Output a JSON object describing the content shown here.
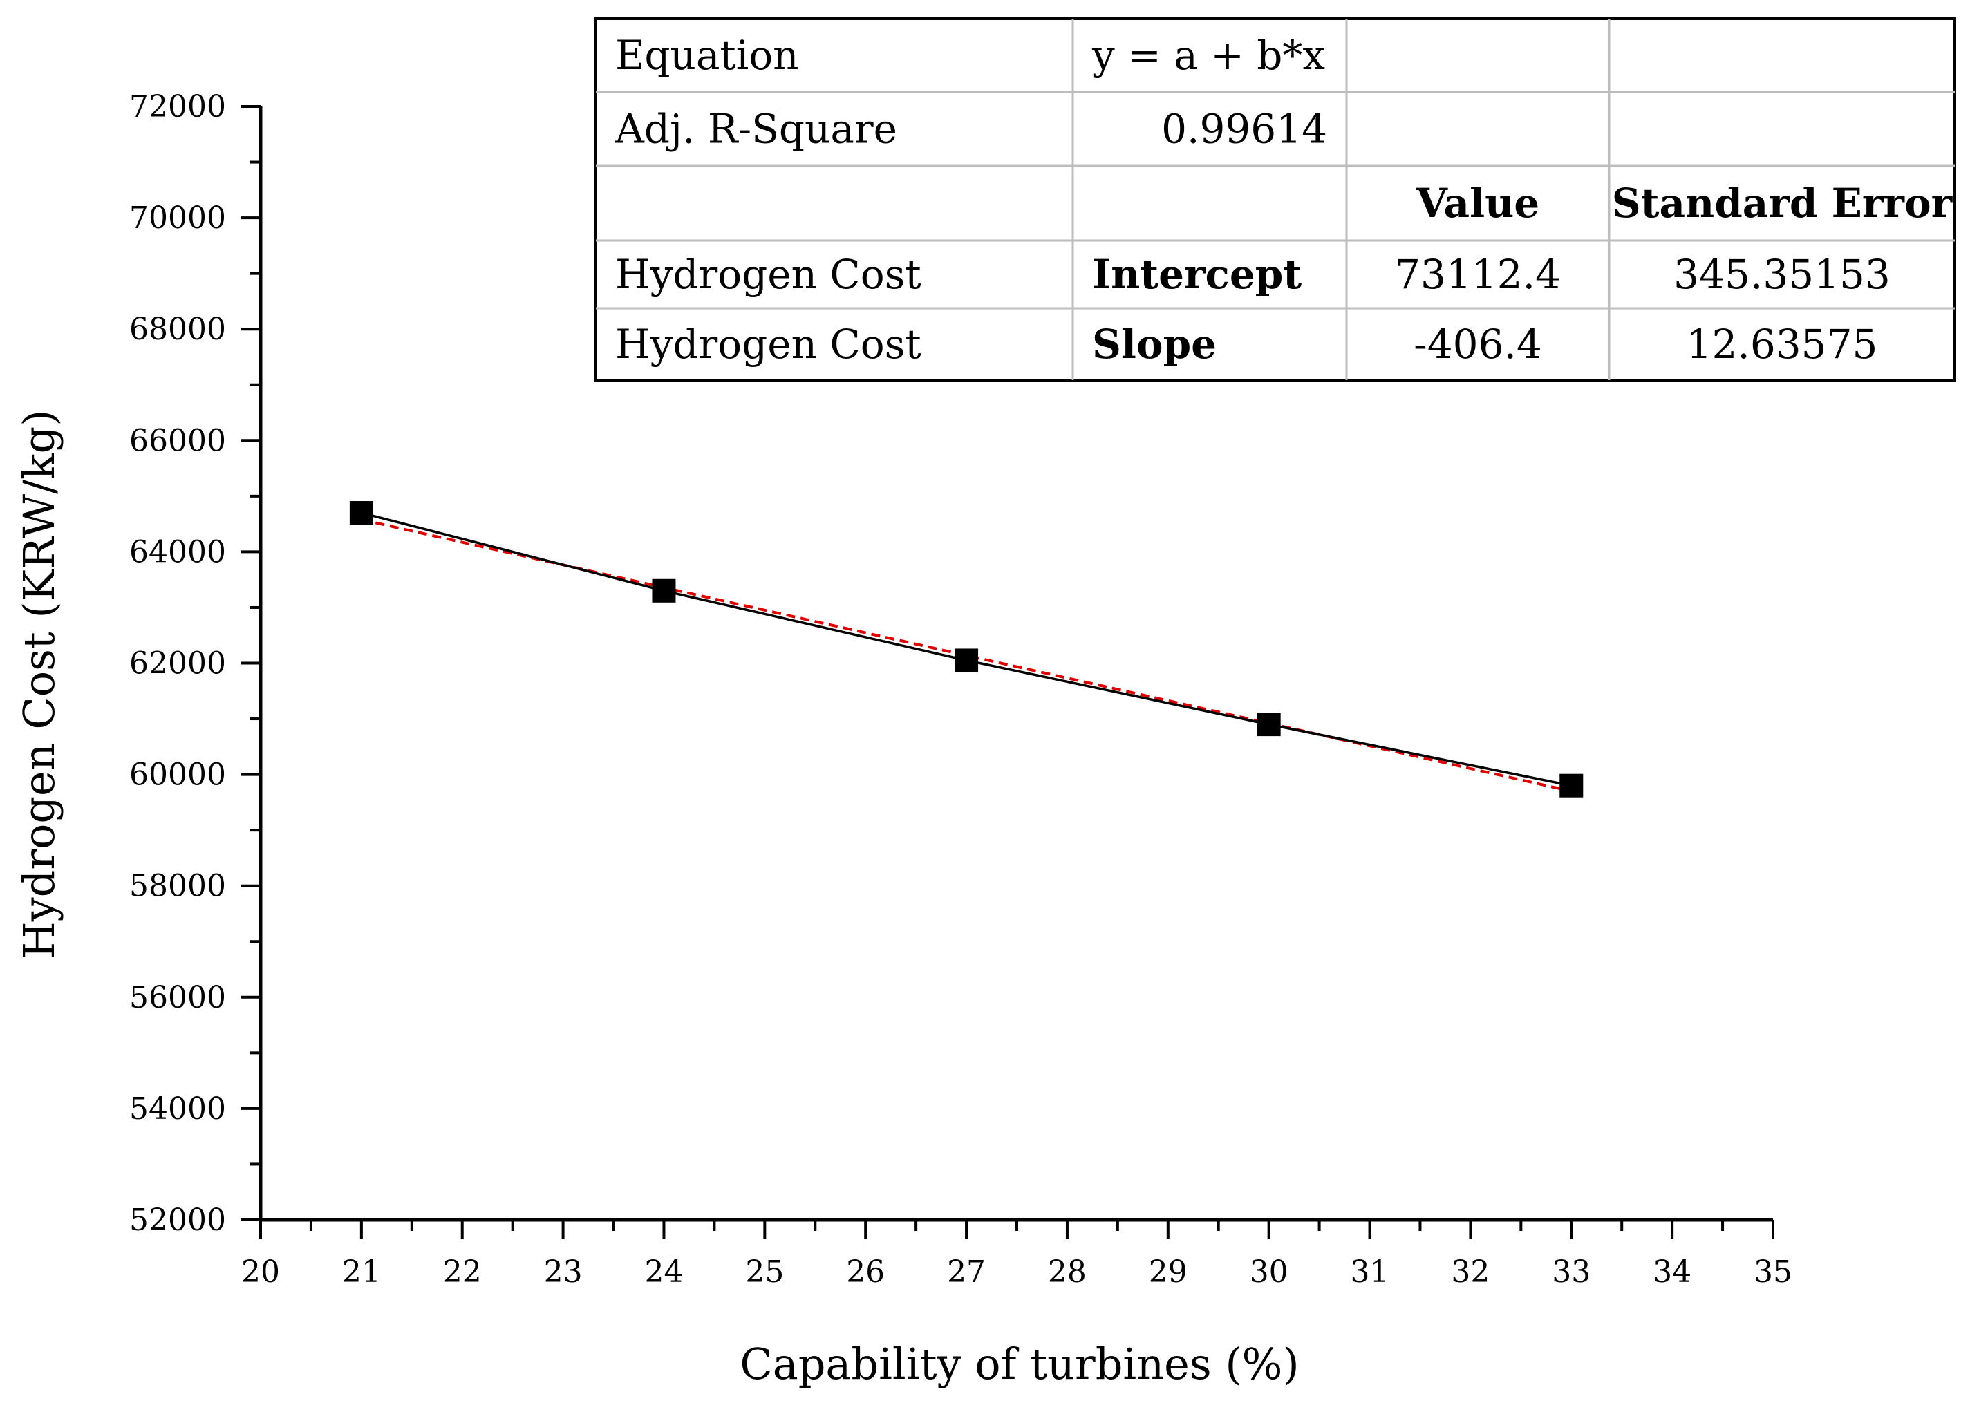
{
  "chart_data": {
    "type": "scatter",
    "xlabel": "Capability of turbines (%)",
    "ylabel": "Hydrogen Cost (KRW/kg)",
    "xlim": [
      20,
      35
    ],
    "ylim": [
      52000,
      72000
    ],
    "x_ticks": [
      20,
      21,
      22,
      23,
      24,
      25,
      26,
      27,
      28,
      29,
      30,
      31,
      32,
      33,
      34,
      35
    ],
    "y_ticks": [
      52000,
      54000,
      56000,
      58000,
      60000,
      62000,
      64000,
      66000,
      68000,
      70000,
      72000
    ],
    "grid": false,
    "series": [
      {
        "style": "square markers, black solid line",
        "color": "#000000",
        "x": [
          21,
          24,
          27,
          30,
          33
        ],
        "y": [
          64700,
          63300,
          62050,
          60900,
          59800
        ]
      },
      {
        "style": "dashed linear fit",
        "color": "#e00000",
        "x": [
          21,
          33
        ],
        "y": [
          64577.6,
          59700.8
        ]
      }
    ],
    "fit_table": {
      "rows": [
        [
          "Equation",
          "y = a + b*x",
          "",
          ""
        ],
        [
          "Adj. R-Square",
          "0.99614",
          "",
          ""
        ],
        [
          "",
          "",
          "Value",
          "Standard Error"
        ],
        [
          "Hydrogen Cost",
          "Intercept",
          "73112.4",
          "345.35153"
        ],
        [
          "Hydrogen Cost",
          "Slope",
          "-406.4",
          "12.63575"
        ]
      ]
    }
  }
}
